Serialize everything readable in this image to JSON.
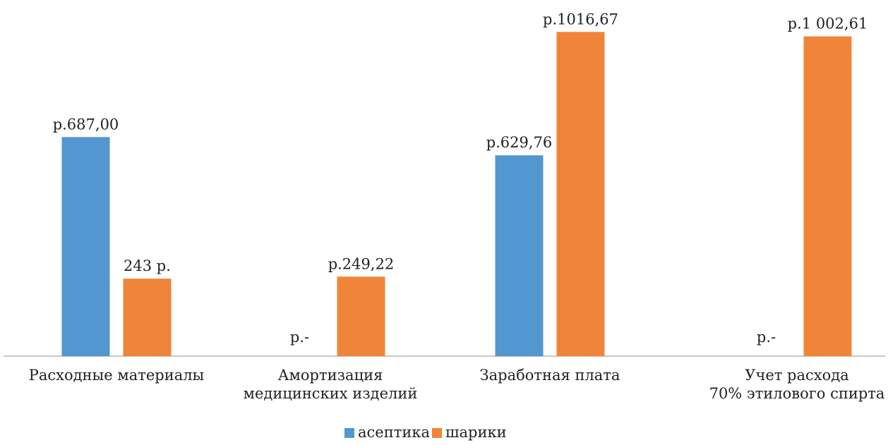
{
  "chart_data": {
    "type": "bar",
    "categories": [
      [
        "Расходные материалы"
      ],
      [
        "Амортизация",
        "медицинских изделий"
      ],
      [
        "Заработная плата"
      ],
      [
        "Учет расхода",
        "70% этилового спирта"
      ]
    ],
    "series": [
      {
        "name": "асептика",
        "color": "#5297d0",
        "values": [
          687.0,
          0,
          629.76,
          0
        ],
        "labels": [
          "р.687,00",
          "р.-",
          "р.629,76",
          "р.-"
        ]
      },
      {
        "name": "шарики",
        "color": "#f08539",
        "values": [
          243,
          249.22,
          1016.67,
          1002.61
        ],
        "labels": [
          "243 р.",
          "р.249,22",
          "р.1016,67",
          "р.1 002,61"
        ]
      }
    ],
    "ylim": [
      0,
      1100
    ],
    "grid": false,
    "legend_position": "bottom"
  }
}
